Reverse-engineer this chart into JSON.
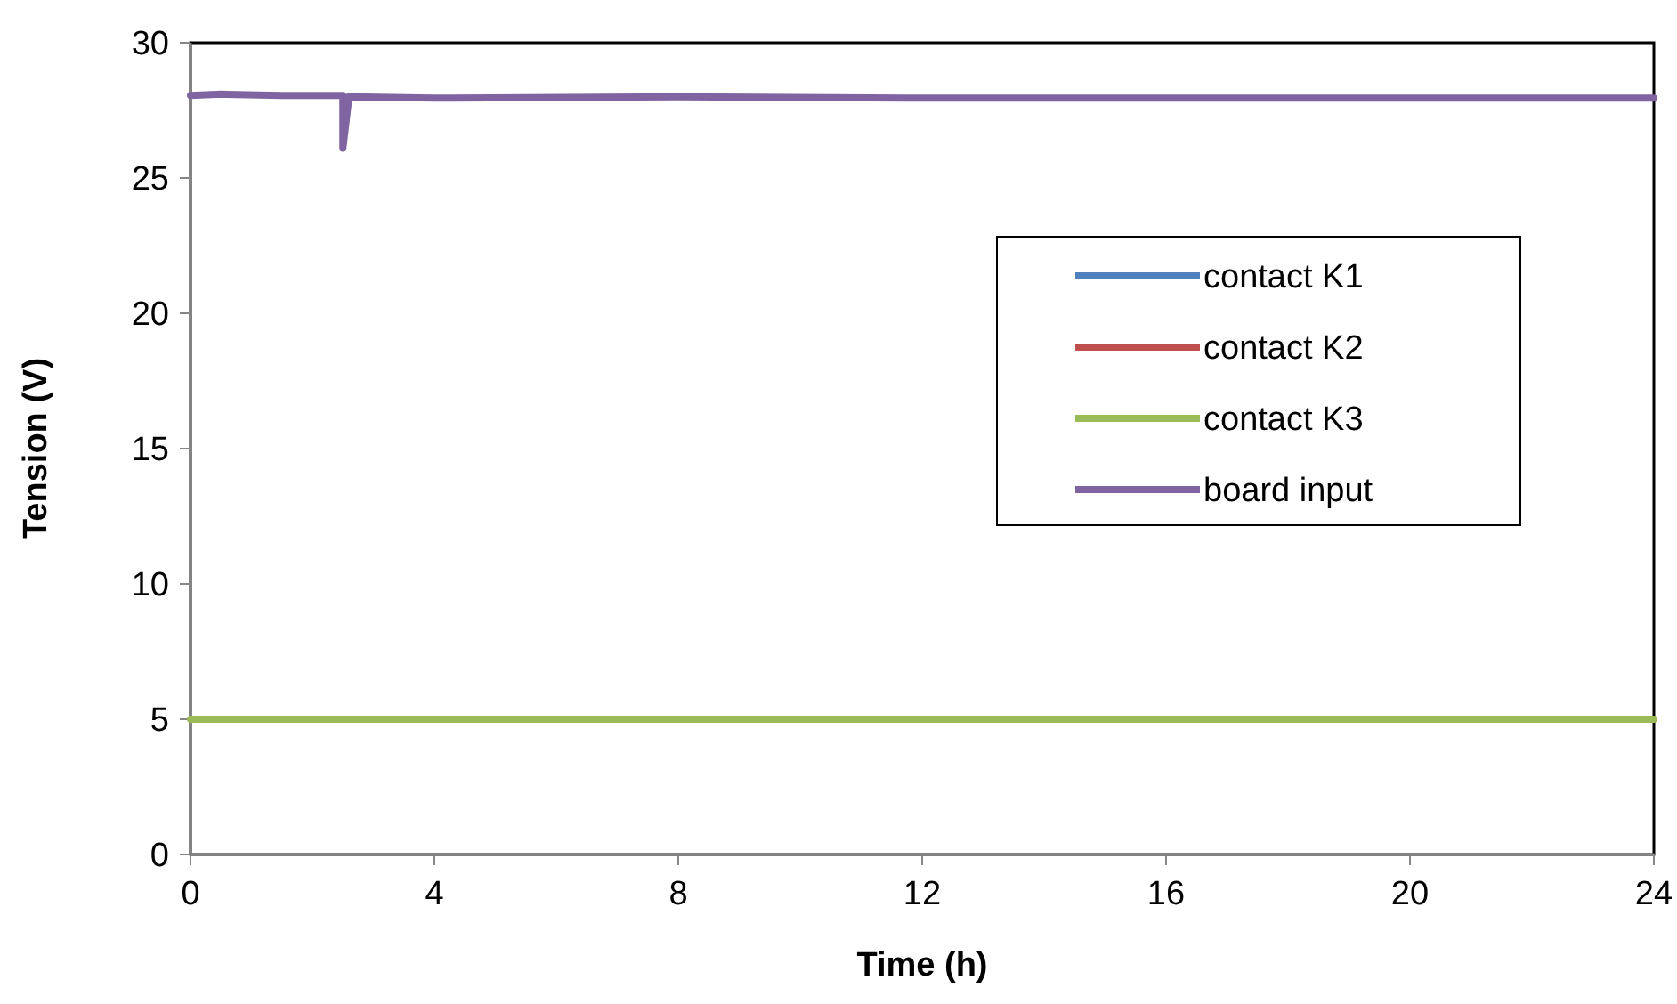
{
  "chart_data": {
    "type": "line",
    "xlabel": "Time (h)",
    "ylabel": "Tension (V)",
    "xlim": [
      0,
      24
    ],
    "xticks": [
      0,
      4,
      8,
      12,
      16,
      20,
      24
    ],
    "ylim": [
      0,
      30
    ],
    "yticks": [
      0,
      5,
      10,
      15,
      20,
      25,
      30
    ],
    "grid": false,
    "legend": "right",
    "marker": "none",
    "line_style": "solid",
    "series": [
      {
        "name": "contact K1",
        "color": "#4f81bd",
        "values": [
          null,
          null
        ]
      },
      {
        "name": "contact K2",
        "color": "#c0504d",
        "values": [
          null,
          null
        ]
      },
      {
        "name": "contact K3",
        "color": "#9bbb59",
        "x": [
          0,
          24
        ],
        "values": [
          5,
          5
        ]
      },
      {
        "name": "board input",
        "color": "#8064a2",
        "x": [
          0,
          0.5,
          1.5,
          2.45,
          2.5,
          2.5,
          2.6,
          4,
          8,
          12,
          16,
          20,
          24
        ],
        "values": [
          28.05,
          28.1,
          28.05,
          28.05,
          28.05,
          26.1,
          28.0,
          27.95,
          28.0,
          27.95,
          27.95,
          27.95,
          27.95
        ]
      }
    ]
  }
}
